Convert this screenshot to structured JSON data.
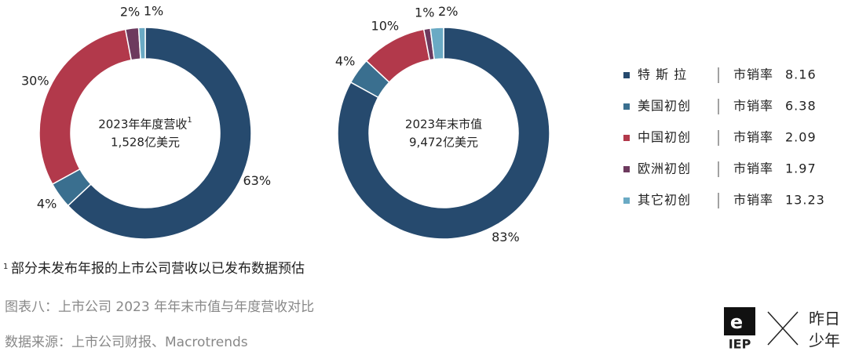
{
  "chart_data": [
    {
      "type": "pie",
      "donut": true,
      "center_text": [
        "2023年年度营收",
        "1,528亿美元"
      ],
      "center_note": "1",
      "categories": [
        "特 斯 拉",
        "美国初创",
        "中国初创",
        "欧洲初创",
        "其它初创"
      ],
      "colors": [
        "#264a6e",
        "#3a6f8f",
        "#b2394b",
        "#6d3a5e",
        "#6aaac4"
      ],
      "values": [
        63,
        4,
        30,
        2,
        1
      ],
      "value_labels": [
        "63%",
        "4%",
        "30%",
        "2%",
        "1%"
      ]
    },
    {
      "type": "pie",
      "donut": true,
      "center_text": [
        "2023年末市值",
        "9,472亿美元"
      ],
      "values": [
        83,
        4,
        10,
        1,
        2
      ],
      "value_labels": [
        "83%",
        "4%",
        "10%",
        "1%",
        "2%"
      ]
    }
  ],
  "legend": {
    "ratio_prefix": "市销率",
    "ratios": [
      8.16,
      6.38,
      2.09,
      1.97,
      13.23
    ]
  },
  "footnote_mark": "1",
  "footnote": "部分未发布年报的上市公司营收以已发布数据预估",
  "caption": "图表八：上市公司 2023 年年末市值与年度营收对比",
  "source": "数据来源：上市公司财报、Macrotrends",
  "logo": {
    "mark": "e",
    "text": "IEP",
    "partner": [
      "昨日",
      "少年"
    ]
  }
}
